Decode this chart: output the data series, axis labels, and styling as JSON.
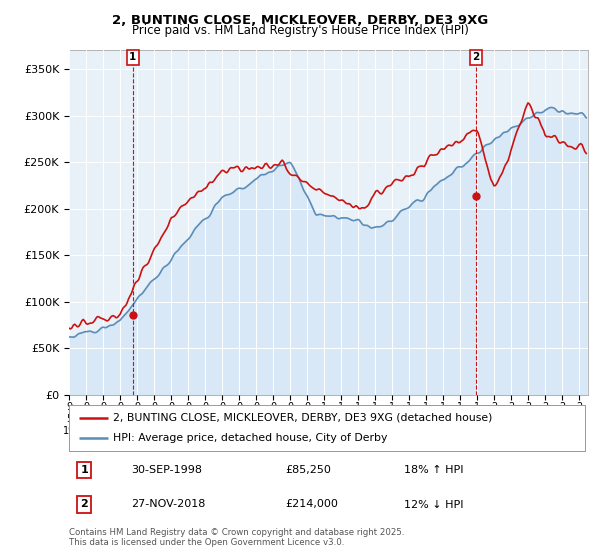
{
  "title_line1": "2, BUNTING CLOSE, MICKLEOVER, DERBY, DE3 9XG",
  "title_line2": "Price paid vs. HM Land Registry's House Price Index (HPI)",
  "ylabel_ticks": [
    "£0",
    "£50K",
    "£100K",
    "£150K",
    "£200K",
    "£250K",
    "£300K",
    "£350K"
  ],
  "ytick_values": [
    0,
    50000,
    100000,
    150000,
    200000,
    250000,
    300000,
    350000
  ],
  "ylim": [
    0,
    370000
  ],
  "xlim_start": 1995.0,
  "xlim_end": 2025.5,
  "hpi_color": "#5b8db8",
  "hpi_fill_color": "#d0e4f5",
  "price_color": "#cc1111",
  "marker1_x": 1998.75,
  "marker1_y": 85250,
  "marker1_label": "1",
  "marker2_x": 2018.92,
  "marker2_y": 214000,
  "marker2_label": "2",
  "legend_line1": "2, BUNTING CLOSE, MICKLEOVER, DERBY, DE3 9XG (detached house)",
  "legend_line2": "HPI: Average price, detached house, City of Derby",
  "annotation1_box": "1",
  "annotation1_date": "30-SEP-1998",
  "annotation1_price": "£85,250",
  "annotation1_hpi": "18% ↑ HPI",
  "annotation2_box": "2",
  "annotation2_date": "27-NOV-2018",
  "annotation2_price": "£214,000",
  "annotation2_hpi": "12% ↓ HPI",
  "footnote": "Contains HM Land Registry data © Crown copyright and database right 2025.\nThis data is licensed under the Open Government Licence v3.0.",
  "background_color": "#ffffff",
  "chart_bg_color": "#e8f0f8",
  "grid_color": "#ffffff"
}
